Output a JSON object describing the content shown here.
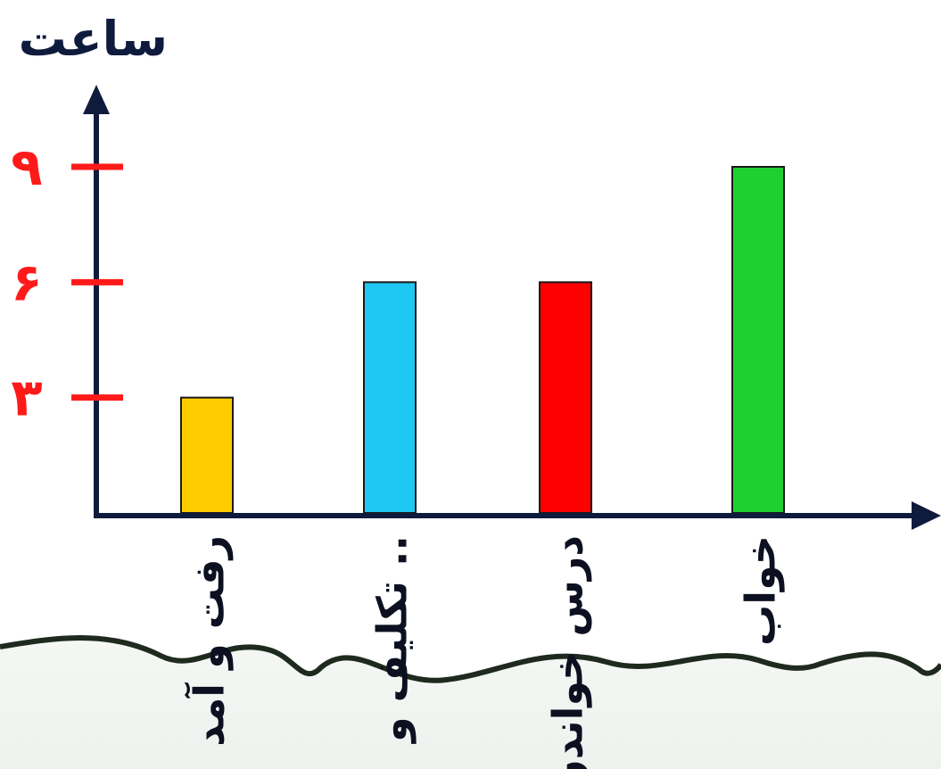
{
  "chart_data": {
    "type": "bar",
    "ylabel": "ساعت",
    "categories": [
      "رفت و آمد",
      "تکلیف و ..",
      "درس خواندن",
      "خواب"
    ],
    "values": [
      3,
      6,
      6,
      9
    ],
    "yticks": [
      3,
      6,
      9
    ],
    "ytick_labels": [
      "۳",
      "۶",
      "۹"
    ],
    "ylim": [
      0,
      9
    ],
    "grid": false,
    "colors": [
      "#ffcc00",
      "#1ec8f2",
      "#ff0000",
      "#1ed131"
    ],
    "axis_color": "#0f1b3d",
    "tick_color": "#ff1a1a"
  }
}
